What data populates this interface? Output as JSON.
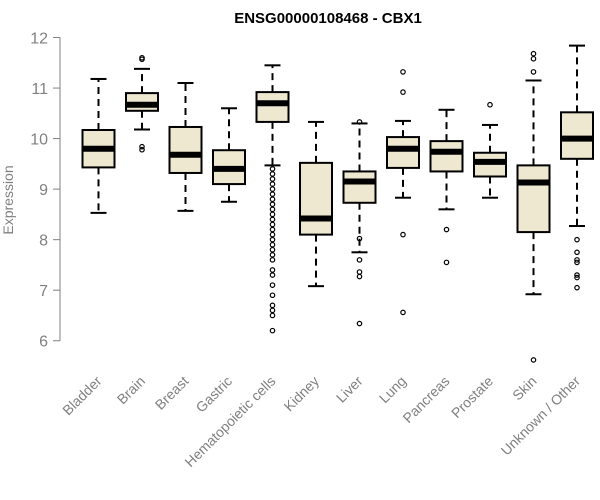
{
  "chart_data": {
    "type": "boxplot",
    "title": "ENSG00000108468 - CBX1",
    "xlabel": "",
    "ylabel": "Expression",
    "ylim": [
      5.5,
      12.05
    ],
    "yticks": [
      6,
      7,
      8,
      9,
      10,
      11,
      12
    ],
    "box_fill": "#EEE8D0",
    "box_stroke": "#000000",
    "axis_color": "#808080",
    "categories": [
      "Bladder",
      "Brain",
      "Breast",
      "Gastric",
      "Hematopoietic cells",
      "Kidney",
      "Liver",
      "Lung",
      "Pancreas",
      "Prostate",
      "Skin",
      "Unknown / Other"
    ],
    "boxes": [
      {
        "category": "Bladder",
        "min": 8.53,
        "q1": 9.43,
        "median": 9.8,
        "q3": 10.17,
        "max": 11.18,
        "outliers": []
      },
      {
        "category": "Brain",
        "min": 10.18,
        "q1": 10.55,
        "median": 10.67,
        "q3": 10.9,
        "max": 11.38,
        "outliers": [
          11.6,
          11.57,
          9.84,
          9.78
        ]
      },
      {
        "category": "Breast",
        "min": 8.57,
        "q1": 9.32,
        "median": 9.68,
        "q3": 10.23,
        "max": 11.1,
        "outliers": []
      },
      {
        "category": "Gastric",
        "min": 8.75,
        "q1": 9.1,
        "median": 9.4,
        "q3": 9.77,
        "max": 10.6,
        "outliers": []
      },
      {
        "category": "Hematopoietic cells",
        "min": 9.47,
        "q1": 10.33,
        "median": 10.7,
        "q3": 10.92,
        "max": 11.45,
        "outliers": [
          9.4,
          9.3,
          9.2,
          9.1,
          9.0,
          8.9,
          8.8,
          8.7,
          8.6,
          8.5,
          8.4,
          8.3,
          8.2,
          8.1,
          8.0,
          7.9,
          7.8,
          7.7,
          7.6,
          7.4,
          7.3,
          7.1,
          6.9,
          6.7,
          6.6,
          6.5,
          6.2
        ]
      },
      {
        "category": "Kidney",
        "min": 7.08,
        "q1": 8.1,
        "median": 8.42,
        "q3": 9.52,
        "max": 10.33,
        "outliers": []
      },
      {
        "category": "Liver",
        "min": 7.75,
        "q1": 8.73,
        "median": 9.15,
        "q3": 9.35,
        "max": 10.3,
        "outliers": [
          10.33,
          8.02,
          7.6,
          7.36,
          7.27,
          6.34
        ]
      },
      {
        "category": "Lung",
        "min": 8.83,
        "q1": 9.42,
        "median": 9.8,
        "q3": 10.03,
        "max": 10.35,
        "outliers": [
          11.32,
          10.92,
          8.1,
          6.56
        ]
      },
      {
        "category": "Pancreas",
        "min": 8.6,
        "q1": 9.35,
        "median": 9.74,
        "q3": 9.95,
        "max": 10.57,
        "outliers": [
          8.2,
          7.55
        ]
      },
      {
        "category": "Prostate",
        "min": 8.83,
        "q1": 9.25,
        "median": 9.54,
        "q3": 9.72,
        "max": 10.27,
        "outliers": [
          10.67
        ]
      },
      {
        "category": "Skin",
        "min": 6.92,
        "q1": 8.15,
        "median": 9.13,
        "q3": 9.47,
        "max": 11.15,
        "outliers": [
          11.68,
          11.58,
          11.32,
          5.62
        ]
      },
      {
        "category": "Unknown / Other",
        "min": 8.27,
        "q1": 9.6,
        "median": 10.0,
        "q3": 10.52,
        "max": 11.84,
        "outliers": [
          8.0,
          7.75,
          7.6,
          7.55,
          7.3,
          7.25,
          7.05
        ]
      }
    ]
  }
}
